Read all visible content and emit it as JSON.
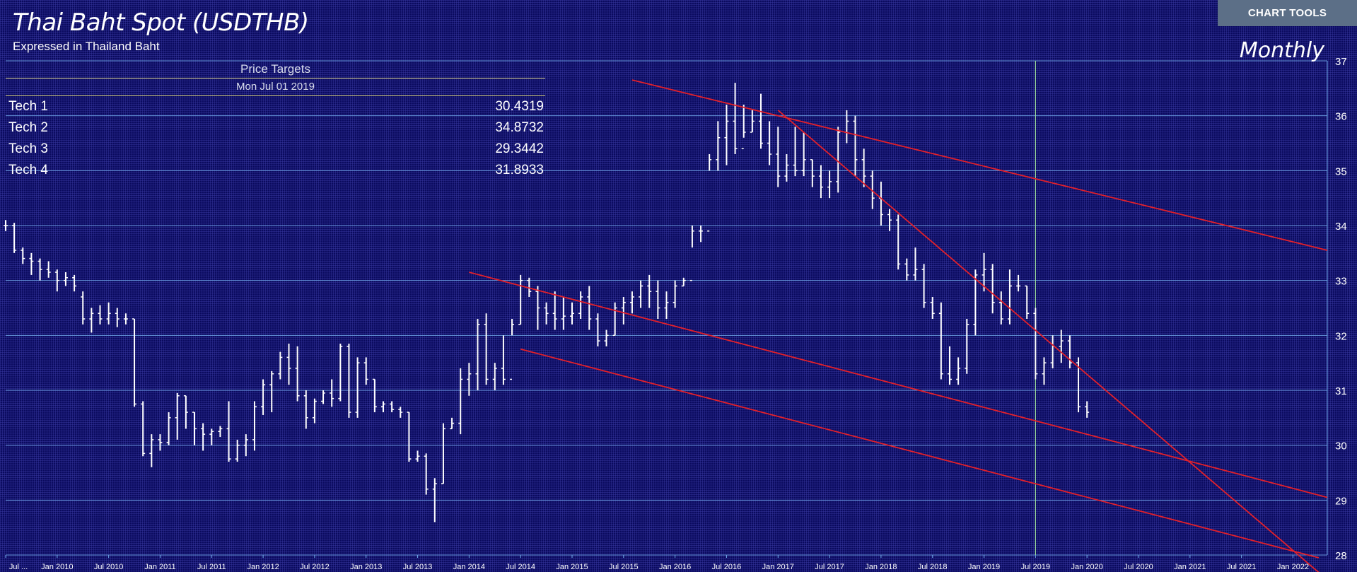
{
  "toolbar": {
    "chart_tools_label": "CHART TOOLS"
  },
  "header": {
    "title": "Thai Baht Spot (USDTHB)",
    "subtitle": "Expressed in Thailand Baht",
    "period": "Monthly"
  },
  "price_targets": {
    "title": "Price Targets",
    "date": "Mon Jul 01 2019",
    "rows": [
      {
        "label": "Tech 1",
        "value": "30.4319"
      },
      {
        "label": "Tech 2",
        "value": "34.8732"
      },
      {
        "label": "Tech 3",
        "value": "29.3442"
      },
      {
        "label": "Tech 4",
        "value": "31.8933"
      }
    ]
  },
  "colors": {
    "background": "#0a0a5e",
    "price": "#ffffff",
    "trendline": "#e3202a",
    "gridline": "#6fa8e8",
    "cursor": "#9ee09e"
  },
  "chart_data": {
    "type": "ohlc",
    "y_axis": {
      "ticks": [
        28,
        29,
        30,
        31,
        32,
        33,
        34,
        35,
        36,
        37
      ],
      "range": [
        28,
        37
      ]
    },
    "x_axis": {
      "ticks": [
        "Jul ...",
        "Jan 2010",
        "Jul 2010",
        "Jan 2011",
        "Jul 2011",
        "Jan 2012",
        "Jul 2012",
        "Jan 2013",
        "Jul 2013",
        "Jan 2014",
        "Jul 2014",
        "Jan 2015",
        "Jul 2015",
        "Jan 2016",
        "Jul 2016",
        "Jan 2017",
        "Jul 2017",
        "Jan 2018",
        "Jul 2018",
        "Jan 2019",
        "Jul 2019",
        "Jan 2020",
        "Jul 2020",
        "Jan 2021",
        "Jul 2021",
        "Jan 2022"
      ],
      "range": [
        "2009-07",
        "2022-05"
      ]
    },
    "cursor": "2019-07",
    "series": [
      {
        "bars": [
          [
            "2009-07",
            34.0,
            34.1,
            33.9,
            34.0
          ],
          [
            "2009-08",
            34.0,
            34.05,
            33.5,
            33.55
          ],
          [
            "2009-09",
            33.55,
            33.6,
            33.3,
            33.4
          ],
          [
            "2009-10",
            33.4,
            33.5,
            33.1,
            33.35
          ],
          [
            "2009-11",
            33.35,
            33.4,
            33.0,
            33.2
          ],
          [
            "2009-12",
            33.2,
            33.35,
            33.05,
            33.15
          ],
          [
            "2010-01",
            33.15,
            33.2,
            32.8,
            33.0
          ],
          [
            "2010-02",
            33.0,
            33.15,
            32.9,
            33.05
          ],
          [
            "2010-03",
            33.05,
            33.1,
            32.8,
            32.9
          ],
          [
            "2010-04",
            32.7,
            32.8,
            32.2,
            32.3
          ],
          [
            "2010-05",
            32.3,
            32.5,
            32.05,
            32.4
          ],
          [
            "2010-06",
            32.4,
            32.55,
            32.2,
            32.3
          ],
          [
            "2010-07",
            32.3,
            32.6,
            32.2,
            32.4
          ],
          [
            "2010-08",
            32.4,
            32.5,
            32.15,
            32.3
          ],
          [
            "2010-09",
            32.3,
            32.4,
            32.2,
            32.3
          ],
          [
            "2010-10",
            32.3,
            32.3,
            30.7,
            30.75
          ],
          [
            "2010-11",
            30.75,
            30.8,
            29.8,
            29.85
          ],
          [
            "2010-12",
            29.85,
            30.2,
            29.6,
            30.1
          ],
          [
            "2011-01",
            30.1,
            30.2,
            29.9,
            30.05
          ],
          [
            "2011-02",
            30.05,
            30.6,
            30.0,
            30.5
          ],
          [
            "2011-03",
            30.5,
            30.95,
            30.1,
            30.9
          ],
          [
            "2011-04",
            30.9,
            30.9,
            30.3,
            30.6
          ],
          [
            "2011-05",
            30.6,
            30.6,
            30.0,
            30.3
          ],
          [
            "2011-06",
            30.3,
            30.4,
            29.9,
            30.2
          ],
          [
            "2011-07",
            30.2,
            30.3,
            30.0,
            30.25
          ],
          [
            "2011-08",
            30.25,
            30.35,
            30.15,
            30.3
          ],
          [
            "2011-09",
            30.3,
            30.8,
            29.7,
            29.75
          ],
          [
            "2011-10",
            29.75,
            30.1,
            29.7,
            30.0
          ],
          [
            "2011-11",
            30.0,
            30.2,
            29.8,
            30.1
          ],
          [
            "2011-12",
            30.1,
            30.8,
            29.9,
            30.7
          ],
          [
            "2012-01",
            30.7,
            31.2,
            30.55,
            31.1
          ],
          [
            "2012-02",
            31.1,
            31.35,
            30.6,
            31.3
          ],
          [
            "2012-03",
            31.3,
            31.7,
            31.2,
            31.6
          ],
          [
            "2012-04",
            31.6,
            31.85,
            31.1,
            31.4
          ],
          [
            "2012-05",
            31.4,
            31.8,
            30.8,
            30.9
          ],
          [
            "2012-06",
            30.9,
            31.0,
            30.3,
            30.5
          ],
          [
            "2012-07",
            30.5,
            30.85,
            30.4,
            30.8
          ],
          [
            "2012-08",
            30.8,
            31.0,
            30.75,
            30.95
          ],
          [
            "2012-09",
            30.95,
            31.2,
            30.7,
            30.85
          ],
          [
            "2012-10",
            30.85,
            31.85,
            30.8,
            31.8
          ],
          [
            "2012-11",
            31.8,
            31.85,
            30.5,
            30.6
          ],
          [
            "2012-12",
            30.6,
            31.6,
            30.5,
            31.5
          ],
          [
            "2013-01",
            31.5,
            31.6,
            31.1,
            31.2
          ],
          [
            "2013-02",
            31.2,
            31.2,
            30.6,
            30.7
          ],
          [
            "2013-03",
            30.7,
            30.8,
            30.6,
            30.75
          ],
          [
            "2013-04",
            30.75,
            30.8,
            30.6,
            30.65
          ],
          [
            "2013-05",
            30.65,
            30.7,
            30.5,
            30.6
          ],
          [
            "2013-06",
            30.6,
            30.6,
            29.7,
            29.75
          ],
          [
            "2013-07",
            29.75,
            29.9,
            29.7,
            29.8
          ],
          [
            "2013-08",
            29.8,
            29.85,
            29.1,
            29.2
          ],
          [
            "2013-09",
            29.2,
            29.4,
            28.6,
            29.3
          ],
          [
            "2013-10",
            29.3,
            30.4,
            29.3,
            30.3
          ],
          [
            "2013-11",
            30.3,
            30.5,
            30.3,
            30.4
          ],
          [
            "2013-12",
            30.4,
            31.4,
            30.2,
            31.2
          ],
          [
            "2014-01",
            31.2,
            31.5,
            30.9,
            31.3
          ],
          [
            "2014-02",
            31.3,
            32.3,
            31.0,
            32.2
          ],
          [
            "2014-03",
            32.2,
            32.4,
            31.1,
            31.2
          ],
          [
            "2014-04",
            31.2,
            31.5,
            31.0,
            31.4
          ],
          [
            "2014-05",
            31.4,
            32.0,
            31.1,
            31.2
          ],
          [
            "2014-06",
            31.2,
            32.3,
            32.0,
            32.2
          ],
          [
            "2014-07",
            32.2,
            33.1,
            32.2,
            33.0
          ],
          [
            "2014-08",
            33.0,
            33.05,
            32.7,
            32.8
          ],
          [
            "2014-09",
            32.8,
            32.9,
            32.1,
            32.5
          ],
          [
            "2014-10",
            32.5,
            32.6,
            32.2,
            32.4
          ],
          [
            "2014-11",
            32.4,
            32.8,
            32.1,
            32.3
          ],
          [
            "2014-12",
            32.3,
            32.7,
            32.1,
            32.35
          ],
          [
            "2015-01",
            32.35,
            32.6,
            32.2,
            32.4
          ],
          [
            "2015-02",
            32.4,
            32.8,
            32.3,
            32.7
          ],
          [
            "2015-03",
            32.7,
            32.9,
            32.1,
            32.3
          ],
          [
            "2015-04",
            32.3,
            32.4,
            31.8,
            31.9
          ],
          [
            "2015-05",
            31.9,
            32.1,
            31.8,
            32.0
          ],
          [
            "2015-06",
            32.0,
            32.6,
            32.0,
            32.5
          ],
          [
            "2015-07",
            32.5,
            32.7,
            32.2,
            32.6
          ],
          [
            "2015-08",
            32.6,
            32.8,
            32.4,
            32.7
          ],
          [
            "2015-09",
            32.7,
            33.0,
            32.5,
            32.9
          ],
          [
            "2015-10",
            32.9,
            33.1,
            32.5,
            32.8
          ],
          [
            "2015-11",
            32.8,
            33.0,
            32.3,
            32.5
          ],
          [
            "2015-12",
            32.5,
            32.8,
            32.3,
            32.6
          ],
          [
            "2016-01",
            32.6,
            33.0,
            32.5,
            32.9
          ],
          [
            "2016-02",
            32.9,
            33.05,
            32.9,
            33.0
          ],
          [
            "2016-03",
            33.0,
            34.0,
            33.6,
            33.9
          ],
          [
            "2016-04",
            33.9,
            34.0,
            33.7,
            33.9
          ],
          [
            "2016-05",
            33.9,
            35.3,
            35.0,
            35.2
          ],
          [
            "2016-06",
            35.2,
            35.9,
            35.0,
            35.6
          ],
          [
            "2016-07",
            35.6,
            36.2,
            35.1,
            35.9
          ],
          [
            "2016-08",
            35.9,
            36.6,
            35.3,
            35.4
          ],
          [
            "2016-09",
            35.4,
            36.2,
            35.6,
            35.7
          ],
          [
            "2016-10",
            35.7,
            36.1,
            35.7,
            35.9
          ],
          [
            "2016-11",
            35.9,
            36.4,
            35.4,
            35.5
          ],
          [
            "2016-12",
            35.5,
            35.9,
            35.1,
            35.3
          ],
          [
            "2017-01",
            35.3,
            35.8,
            34.7,
            34.9
          ],
          [
            "2017-02",
            34.9,
            35.3,
            34.8,
            35.1
          ],
          [
            "2017-03",
            35.1,
            35.8,
            34.9,
            35.0
          ],
          [
            "2017-04",
            35.0,
            35.7,
            34.9,
            35.2
          ],
          [
            "2017-05",
            35.2,
            35.2,
            34.7,
            34.9
          ],
          [
            "2017-06",
            34.9,
            35.1,
            34.5,
            34.7
          ],
          [
            "2017-07",
            34.7,
            35.0,
            34.5,
            34.8
          ],
          [
            "2017-08",
            34.8,
            35.8,
            34.6,
            35.7
          ],
          [
            "2017-09",
            35.7,
            36.1,
            35.5,
            35.9
          ],
          [
            "2017-10",
            35.9,
            36.0,
            34.9,
            35.2
          ],
          [
            "2017-11",
            35.2,
            35.4,
            34.7,
            34.9
          ],
          [
            "2017-12",
            34.9,
            35.0,
            34.3,
            34.5
          ],
          [
            "2018-01",
            34.5,
            34.8,
            34.0,
            34.2
          ],
          [
            "2018-02",
            34.2,
            34.3,
            33.9,
            34.1
          ],
          [
            "2018-03",
            34.1,
            34.2,
            33.2,
            33.3
          ],
          [
            "2018-04",
            33.3,
            33.4,
            33.0,
            33.1
          ],
          [
            "2018-05",
            33.1,
            33.6,
            33.0,
            33.2
          ],
          [
            "2018-06",
            33.2,
            33.3,
            32.5,
            32.6
          ],
          [
            "2018-07",
            32.6,
            32.7,
            32.3,
            32.4
          ],
          [
            "2018-08",
            32.4,
            32.6,
            31.2,
            31.3
          ],
          [
            "2018-09",
            31.3,
            31.8,
            31.1,
            31.2
          ],
          [
            "2018-10",
            31.2,
            31.6,
            31.1,
            31.4
          ],
          [
            "2018-11",
            31.4,
            32.3,
            31.3,
            32.2
          ],
          [
            "2018-12",
            32.2,
            33.2,
            32.0,
            33.1
          ],
          [
            "2019-01",
            33.1,
            33.5,
            32.8,
            33.2
          ],
          [
            "2019-02",
            33.2,
            33.3,
            32.4,
            32.6
          ],
          [
            "2019-03",
            32.6,
            32.8,
            32.2,
            32.3
          ],
          [
            "2019-04",
            32.3,
            33.2,
            32.2,
            32.9
          ],
          [
            "2019-05",
            32.9,
            33.1,
            32.8,
            32.9
          ],
          [
            "2019-06",
            32.9,
            32.9,
            32.3,
            32.4
          ],
          [
            "2019-07",
            32.4,
            32.5,
            31.2,
            31.3
          ],
          [
            "2019-08",
            31.3,
            31.6,
            31.1,
            31.5
          ],
          [
            "2019-09",
            31.5,
            32.0,
            31.4,
            31.8
          ],
          [
            "2019-10",
            31.8,
            32.1,
            31.5,
            31.9
          ],
          [
            "2019-11",
            31.9,
            32.0,
            31.4,
            31.5
          ],
          [
            "2019-12",
            31.5,
            31.6,
            30.6,
            30.7
          ],
          [
            "2020-01",
            30.7,
            30.8,
            30.5,
            30.6
          ]
        ]
      }
    ],
    "trendlines": [
      {
        "from": [
          "2015-08",
          36.65
        ],
        "to": [
          "2022-05",
          33.55
        ]
      },
      {
        "from": [
          "2017-01",
          36.1
        ],
        "to": [
          "2022-05",
          27.55
        ]
      },
      {
        "from": [
          "2014-01",
          33.15
        ],
        "to": [
          "2022-05",
          29.05
        ]
      },
      {
        "from": [
          "2014-07",
          31.75
        ],
        "to": [
          "2022-04",
          27.95
        ]
      }
    ]
  }
}
